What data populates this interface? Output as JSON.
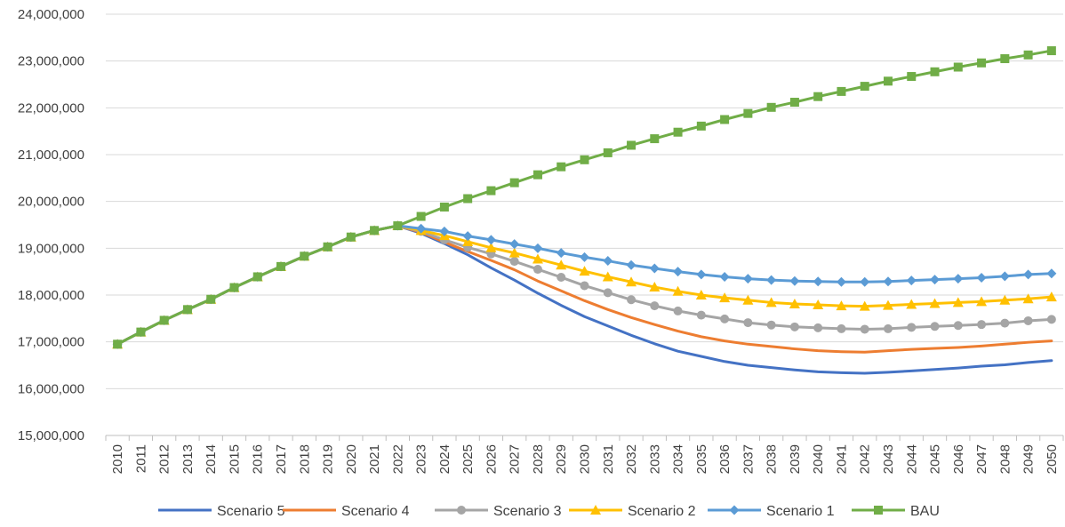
{
  "chart_data": {
    "type": "line",
    "title": "",
    "xlabel": "",
    "ylabel": "",
    "ylim": [
      15000000,
      24000000
    ],
    "ytick_step": 1000000,
    "grid": "horizontal",
    "legend_position": "bottom",
    "x": [
      2010,
      2011,
      2012,
      2013,
      2014,
      2015,
      2016,
      2017,
      2018,
      2019,
      2020,
      2021,
      2022,
      2023,
      2024,
      2025,
      2026,
      2027,
      2028,
      2029,
      2030,
      2031,
      2032,
      2033,
      2034,
      2035,
      2036,
      2037,
      2038,
      2039,
      2040,
      2041,
      2042,
      2043,
      2044,
      2045,
      2046,
      2047,
      2048,
      2049,
      2050
    ],
    "series": [
      {
        "name": "Scenario 5",
        "color": "#4472C4",
        "marker": "none",
        "values": [
          16950000,
          17210000,
          17460000,
          17690000,
          17910000,
          18160000,
          18390000,
          18610000,
          18830000,
          19030000,
          19240000,
          19380000,
          19480000,
          19320000,
          19100000,
          18860000,
          18580000,
          18320000,
          18040000,
          17780000,
          17540000,
          17340000,
          17140000,
          16960000,
          16800000,
          16690000,
          16580000,
          16500000,
          16450000,
          16400000,
          16360000,
          16340000,
          16330000,
          16350000,
          16380000,
          16410000,
          16440000,
          16480000,
          16510000,
          16560000,
          16600000
        ]
      },
      {
        "name": "Scenario 4",
        "color": "#ED7D31",
        "marker": "none",
        "values": [
          16950000,
          17210000,
          17460000,
          17690000,
          17910000,
          18160000,
          18390000,
          18610000,
          18830000,
          19030000,
          19240000,
          19380000,
          19480000,
          19340000,
          19130000,
          18930000,
          18740000,
          18540000,
          18300000,
          18090000,
          17880000,
          17690000,
          17520000,
          17370000,
          17230000,
          17110000,
          17020000,
          16950000,
          16900000,
          16850000,
          16810000,
          16790000,
          16780000,
          16810000,
          16840000,
          16860000,
          16880000,
          16910000,
          16950000,
          16990000,
          17020000
        ]
      },
      {
        "name": "Scenario 3",
        "color": "#A5A5A5",
        "marker": "circle",
        "values": [
          16950000,
          17210000,
          17460000,
          17690000,
          17910000,
          18160000,
          18390000,
          18610000,
          18830000,
          19030000,
          19240000,
          19380000,
          19480000,
          19360000,
          19180000,
          19020000,
          18880000,
          18720000,
          18550000,
          18380000,
          18200000,
          18050000,
          17900000,
          17770000,
          17660000,
          17570000,
          17490000,
          17410000,
          17360000,
          17320000,
          17300000,
          17280000,
          17270000,
          17280000,
          17310000,
          17330000,
          17350000,
          17370000,
          17400000,
          17450000,
          17480000
        ]
      },
      {
        "name": "Scenario 2",
        "color": "#FFC000",
        "marker": "triangle",
        "values": [
          16950000,
          17210000,
          17460000,
          17690000,
          17910000,
          18160000,
          18390000,
          18610000,
          18830000,
          19030000,
          19240000,
          19380000,
          19480000,
          19380000,
          19270000,
          19140000,
          19010000,
          18900000,
          18770000,
          18640000,
          18510000,
          18390000,
          18280000,
          18170000,
          18080000,
          18000000,
          17940000,
          17890000,
          17840000,
          17810000,
          17790000,
          17770000,
          17760000,
          17780000,
          17800000,
          17820000,
          17840000,
          17860000,
          17890000,
          17920000,
          17960000
        ]
      },
      {
        "name": "Scenario 1",
        "color": "#5B9BD5",
        "marker": "diamond",
        "values": [
          16950000,
          17210000,
          17460000,
          17690000,
          17910000,
          18160000,
          18390000,
          18610000,
          18830000,
          19030000,
          19240000,
          19380000,
          19480000,
          19420000,
          19360000,
          19260000,
          19180000,
          19090000,
          19000000,
          18900000,
          18810000,
          18730000,
          18640000,
          18570000,
          18500000,
          18440000,
          18390000,
          18350000,
          18320000,
          18300000,
          18290000,
          18280000,
          18280000,
          18290000,
          18310000,
          18330000,
          18350000,
          18370000,
          18400000,
          18440000,
          18460000
        ]
      },
      {
        "name": "BAU",
        "color": "#70AD47",
        "marker": "square",
        "values": [
          16950000,
          17210000,
          17460000,
          17690000,
          17910000,
          18160000,
          18390000,
          18610000,
          18830000,
          19030000,
          19240000,
          19380000,
          19480000,
          19680000,
          19880000,
          20060000,
          20230000,
          20400000,
          20570000,
          20740000,
          20890000,
          21040000,
          21200000,
          21340000,
          21480000,
          21610000,
          21750000,
          21880000,
          22010000,
          22120000,
          22240000,
          22350000,
          22460000,
          22570000,
          22670000,
          22770000,
          22870000,
          22960000,
          23050000,
          23130000,
          23220000
        ]
      }
    ]
  }
}
